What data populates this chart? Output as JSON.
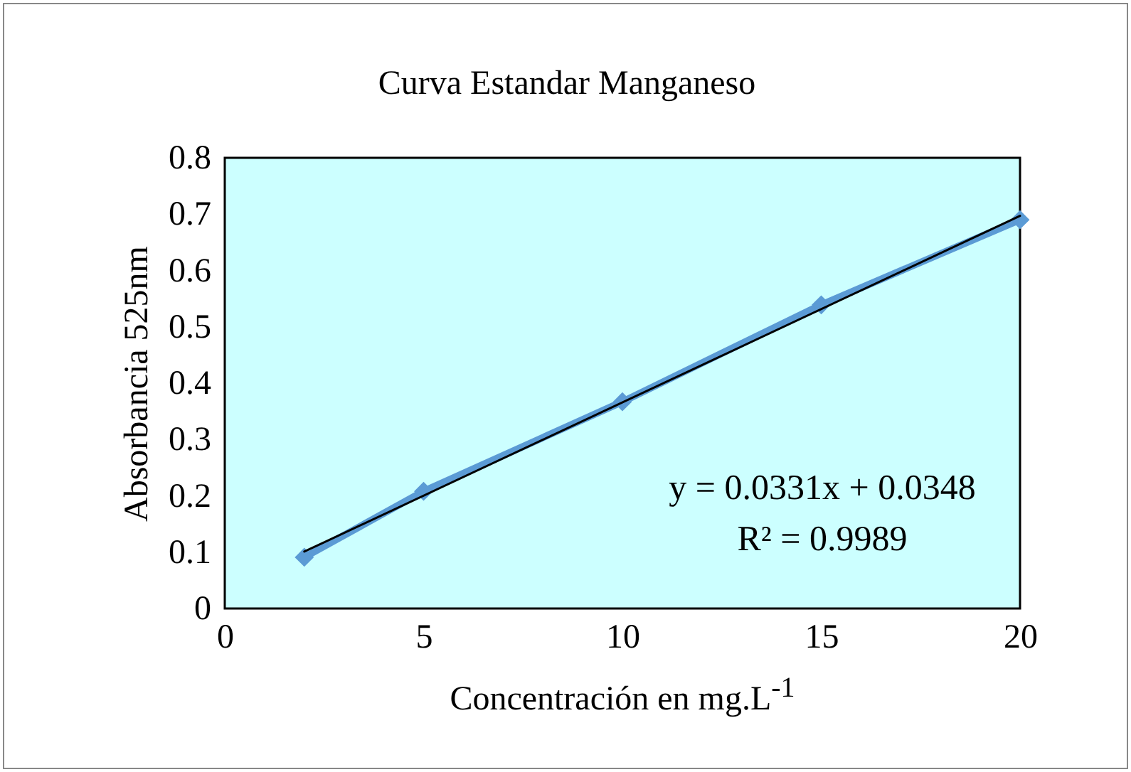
{
  "chart_data": {
    "type": "line",
    "title": "Curva Estandar Manganeso",
    "xlabel": "Concentración en mg.L$^{-1}$",
    "ylabel": "Absorbancia 525nm",
    "x": [
      2,
      5,
      10,
      15,
      20
    ],
    "series": [
      {
        "color": "#5b9bd5",
        "values": [
          0.091,
          0.208,
          0.367,
          0.539,
          0.69
        ],
        "marker": "diamond"
      },
      {
        "type": "line",
        "color": "#000000",
        "x": [
          2,
          20
        ],
        "values": [
          0.101,
          0.697
        ],
        "marker": "none"
      }
    ],
    "xlim": [
      0,
      20
    ],
    "xticks": [
      0,
      5,
      10,
      15,
      20
    ],
    "ylim": [
      0,
      0.8
    ],
    "yticks": [
      0,
      0.1,
      0.2,
      0.3,
      0.4,
      0.5,
      0.6,
      0.7,
      0.8
    ],
    "grid": false,
    "annotations": [
      "y = 0.0331x + 0.0348",
      "R² = 0.9989"
    ]
  }
}
